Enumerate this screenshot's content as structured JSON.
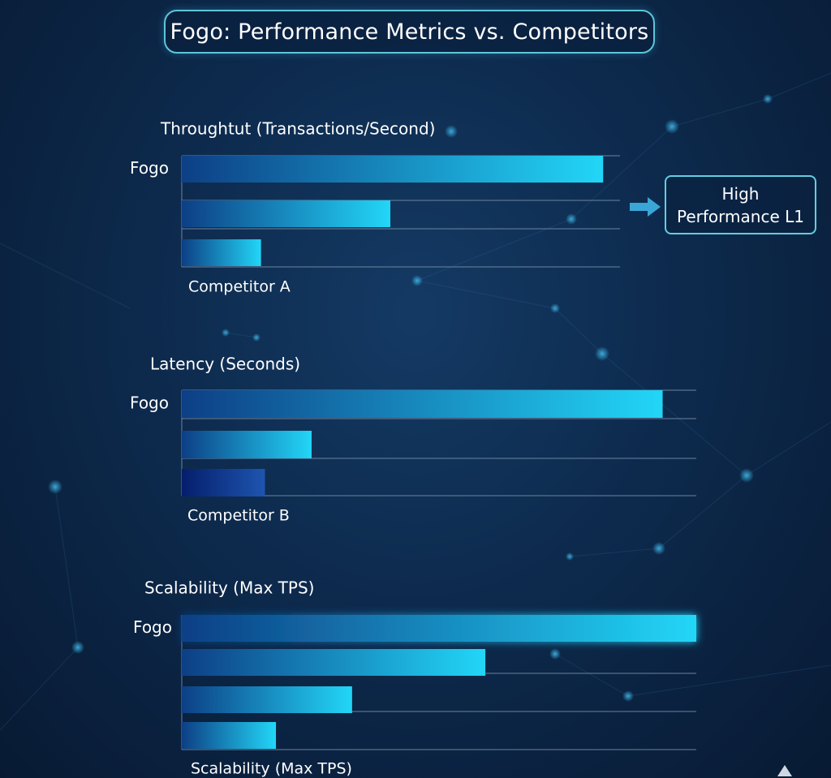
{
  "title": "Fogo: Performance Metrics vs. Competitors",
  "callout": {
    "line1": "High",
    "line2": "Performance L1"
  },
  "colors": {
    "bar_start": "#0d3f85",
    "bar_end": "#22d6f7",
    "dark_bar_start": "#051e6b",
    "dark_bar_end": "#1e55b0",
    "gridline": "#7d93ad",
    "accent": "#5ec6d8"
  },
  "chart_data": [
    {
      "type": "bar",
      "orientation": "horizontal",
      "title": "Throughtut (Transactions/Second)",
      "categories": [
        "Fogo",
        "",
        ""
      ],
      "values": [
        100,
        49.5,
        18.8
      ],
      "xlim": [
        0,
        104
      ],
      "caption": "Competitor A"
    },
    {
      "type": "bar",
      "orientation": "horizontal",
      "title": "Latency (Seconds)",
      "categories": [
        "Fogo",
        "",
        ""
      ],
      "values": [
        100,
        27,
        17.3
      ],
      "xlim": [
        0,
        107
      ],
      "caption": "Competitor B"
    },
    {
      "type": "bar",
      "orientation": "horizontal",
      "title": "Scalability (Max TPS)",
      "categories": [
        "Fogo",
        "",
        "",
        ""
      ],
      "values": [
        100,
        59,
        33.1,
        18.3
      ],
      "xlim": [
        0,
        100
      ],
      "caption": "Scalability (Max TPS)"
    }
  ]
}
